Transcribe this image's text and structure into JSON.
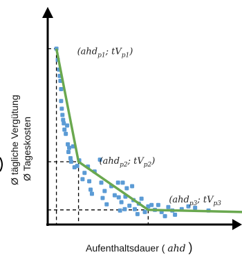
{
  "chart_data": {
    "type": "scatter",
    "title": "",
    "xlabel": "Aufenthaltsdauer",
    "xlabel_symbol": "ahd",
    "ylabel_lines": [
      "Ø tägliche Vergütung",
      "Ø Tageskosten"
    ],
    "xlim": [
      0,
      290
    ],
    "ylim": [
      0,
      300
    ],
    "grid": false,
    "legend": "none",
    "colors": {
      "points": "#5b9bd5",
      "line": "#6aa84f",
      "axis": "#000000",
      "guides": "#000000"
    },
    "series": [
      {
        "type": "scatter",
        "points": [
          [
            13,
            252
          ],
          [
            15,
            236
          ],
          [
            17,
            222
          ],
          [
            18,
            213
          ],
          [
            19,
            206
          ],
          [
            20,
            194
          ],
          [
            20,
            177
          ],
          [
            21,
            166
          ],
          [
            22,
            157
          ],
          [
            23,
            150
          ],
          [
            24,
            145
          ],
          [
            25,
            136
          ],
          [
            27,
            130
          ],
          [
            29,
            142
          ],
          [
            30,
            115
          ],
          [
            31,
            104
          ],
          [
            32,
            110
          ],
          [
            34,
            95
          ],
          [
            35,
            90
          ],
          [
            38,
            112
          ],
          [
            40,
            82
          ],
          [
            44,
            84
          ],
          [
            47,
            92
          ],
          [
            52,
            65
          ],
          [
            55,
            74
          ],
          [
            60,
            83
          ],
          [
            62,
            62
          ],
          [
            64,
            50
          ],
          [
            66,
            44
          ],
          [
            70,
            76
          ],
          [
            78,
            93
          ],
          [
            80,
            60
          ],
          [
            82,
            38
          ],
          [
            85,
            48
          ],
          [
            88,
            29
          ],
          [
            95,
            55
          ],
          [
            100,
            42
          ],
          [
            105,
            60
          ],
          [
            106,
            39
          ],
          [
            108,
            20
          ],
          [
            110,
            32
          ],
          [
            112,
            60
          ],
          [
            115,
            22
          ],
          [
            116,
            40
          ],
          [
            118,
            52
          ],
          [
            122,
            27
          ],
          [
            126,
            55
          ],
          [
            128,
            35
          ],
          [
            130,
            22
          ],
          [
            134,
            15
          ],
          [
            136,
            30
          ],
          [
            140,
            37
          ],
          [
            145,
            18
          ],
          [
            150,
            26
          ],
          [
            155,
            28
          ],
          [
            160,
            21
          ],
          [
            165,
            28
          ],
          [
            170,
            18
          ],
          [
            175,
            12
          ],
          [
            180,
            25
          ],
          [
            186,
            20
          ],
          [
            190,
            14
          ],
          [
            200,
            22
          ],
          [
            210,
            26
          ],
          [
            220,
            24
          ],
          [
            240,
            20
          ]
        ]
      },
      {
        "type": "line",
        "points": [
          [
            13,
            252
          ],
          [
            46,
            90
          ],
          [
            150,
            21
          ],
          [
            290,
            18
          ]
        ]
      }
    ],
    "annotations": [
      {
        "label": "(ahd_p1; tV_p1)",
        "base1": "(ahd",
        "sub1": "p1",
        "mid": "; tV",
        "sub2": "p1",
        "end": ")",
        "anchor": [
          13,
          252
        ]
      },
      {
        "label": "(ahd_p2; tV_p2)",
        "base1": "(ahd",
        "sub1": "p2",
        "mid": "; tV",
        "sub2": "p2",
        "end": ")",
        "anchor": [
          46,
          90
        ]
      },
      {
        "label": "(ahd_p3; tV_p3",
        "base1": "(ahd",
        "sub1": "p3",
        "mid": "; tV",
        "sub2": "p3",
        "end": "",
        "anchor": [
          150,
          21
        ]
      }
    ]
  }
}
